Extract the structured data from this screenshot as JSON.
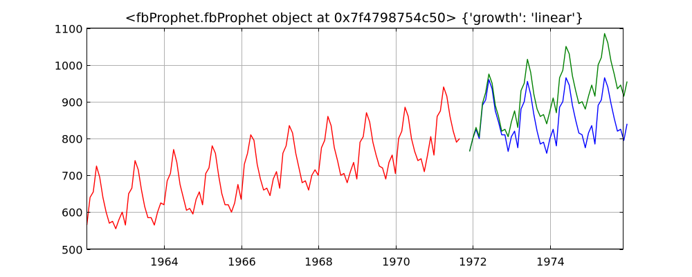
{
  "chart_data": {
    "type": "line",
    "title": "<fbProphet.fbProphet object at 0x7f4798754c50> {'growth': 'linear'}",
    "xlabel": "",
    "ylabel": "",
    "xlim": [
      1962.0,
      1975.9
    ],
    "ylim": [
      500,
      1100
    ],
    "x_ticks": [
      1964,
      1966,
      1968,
      1970,
      1972,
      1974
    ],
    "y_ticks": [
      500,
      600,
      700,
      800,
      900,
      1000,
      1100
    ],
    "grid": true,
    "legend": null,
    "series": [
      {
        "color": "#ff0000",
        "x_start": 1962.0,
        "x_step": 0.0833,
        "values": [
          565,
          640,
          655,
          725,
          695,
          640,
          600,
          570,
          575,
          555,
          580,
          600,
          565,
          650,
          665,
          740,
          715,
          660,
          615,
          585,
          585,
          565,
          600,
          625,
          620,
          685,
          705,
          770,
          735,
          675,
          640,
          605,
          610,
          595,
          635,
          655,
          620,
          705,
          720,
          780,
          760,
          700,
          650,
          620,
          620,
          600,
          625,
          675,
          635,
          730,
          760,
          810,
          795,
          730,
          690,
          660,
          665,
          645,
          690,
          710,
          665,
          760,
          780,
          835,
          815,
          760,
          720,
          680,
          685,
          660,
          700,
          715,
          700,
          775,
          795,
          860,
          835,
          775,
          740,
          700,
          705,
          680,
          710,
          735,
          690,
          790,
          805,
          870,
          845,
          790,
          755,
          725,
          720,
          690,
          735,
          755,
          705,
          800,
          820,
          885,
          860,
          800,
          765,
          740,
          745,
          710,
          755,
          805,
          755,
          860,
          875,
          940,
          915,
          860,
          820,
          790,
          800
        ]
      },
      {
        "color": "#0000ff",
        "x_start": 1971.92,
        "x_step": 0.0833,
        "values": [
          765,
          800,
          825,
          800,
          890,
          905,
          960,
          935,
          875,
          845,
          810,
          810,
          765,
          805,
          820,
          775,
          880,
          900,
          955,
          920,
          865,
          820,
          785,
          790,
          760,
          800,
          825,
          780,
          885,
          900,
          965,
          945,
          890,
          850,
          815,
          810,
          775,
          815,
          835,
          785,
          890,
          905,
          965,
          940,
          895,
          855,
          820,
          825,
          795,
          840
        ]
      },
      {
        "color": "#008000",
        "x_start": 1971.92,
        "x_step": 0.0833,
        "values": [
          765,
          800,
          830,
          805,
          895,
          925,
          975,
          950,
          890,
          860,
          820,
          825,
          805,
          845,
          875,
          830,
          930,
          950,
          1015,
          980,
          920,
          880,
          860,
          865,
          840,
          875,
          910,
          870,
          965,
          985,
          1050,
          1030,
          970,
          930,
          895,
          900,
          880,
          915,
          945,
          915,
          1000,
          1020,
          1085,
          1060,
          1010,
          975,
          935,
          945,
          915,
          955
        ]
      }
    ]
  }
}
